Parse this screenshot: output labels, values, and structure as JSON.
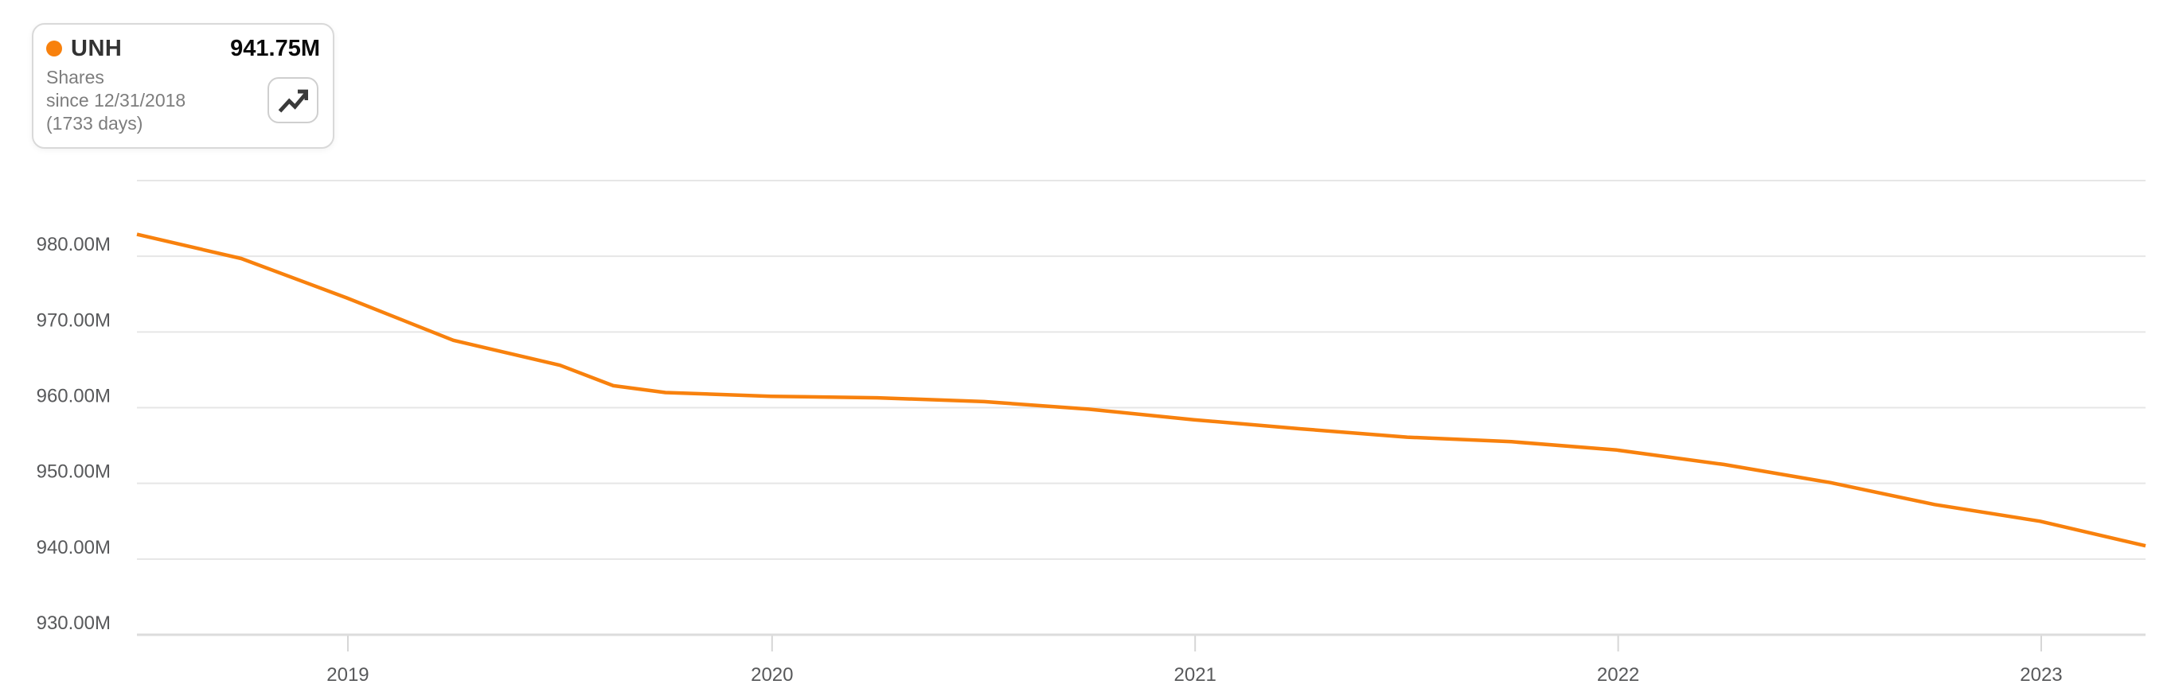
{
  "legend": {
    "symbol": "UNH",
    "value": "941.75M",
    "metric": "Shares",
    "period_line1": "since 12/31/2018",
    "period_line2": "(1733 days)",
    "trend_icon": "trending-up-icon"
  },
  "chart_data": {
    "type": "line",
    "title": "UNH Shares since 12/31/2018 (1733 days)",
    "unit": "M shares",
    "grid": "horizontal",
    "legend_position": "top-left",
    "ylim": [
      930,
      990
    ],
    "gridline_values": [
      990,
      980,
      970,
      960,
      950,
      940,
      930
    ],
    "y_ticks": [
      {
        "value": 980,
        "label": "980.00M"
      },
      {
        "value": 970,
        "label": "970.00M"
      },
      {
        "value": 960,
        "label": "960.00M"
      },
      {
        "value": 950,
        "label": "950.00M"
      },
      {
        "value": 940,
        "label": "940.00M"
      },
      {
        "value": 930,
        "label": "930.00M"
      }
    ],
    "x_range": {
      "start": "2018-12-31",
      "end": "2023-09-29",
      "total_days": 1733
    },
    "x_ticks": [
      {
        "label": "2019",
        "position_date": "2019-07-01"
      },
      {
        "label": "2020",
        "position_date": "2020-07-01"
      },
      {
        "label": "2021",
        "position_date": "2021-07-01"
      },
      {
        "label": "2022",
        "position_date": "2022-07-01"
      },
      {
        "label": "2023",
        "position_date": "2023-07-01"
      }
    ],
    "series": [
      {
        "name": "UNH Shares",
        "color": "#f8810d",
        "last_value_label": "941.75M",
        "points": [
          {
            "date": "2018-12-31",
            "value": 982.9
          },
          {
            "date": "2019-03-31",
            "value": 979.7
          },
          {
            "date": "2019-06-30",
            "value": 974.5
          },
          {
            "date": "2019-09-30",
            "value": 968.9
          },
          {
            "date": "2019-12-31",
            "value": 965.6
          },
          {
            "date": "2020-02-15",
            "value": 962.9
          },
          {
            "date": "2020-03-31",
            "value": 962.0
          },
          {
            "date": "2020-06-30",
            "value": 961.5
          },
          {
            "date": "2020-09-30",
            "value": 961.3
          },
          {
            "date": "2020-12-31",
            "value": 960.8
          },
          {
            "date": "2021-03-31",
            "value": 959.8
          },
          {
            "date": "2021-06-30",
            "value": 958.4
          },
          {
            "date": "2021-09-30",
            "value": 957.2
          },
          {
            "date": "2021-12-31",
            "value": 956.1
          },
          {
            "date": "2022-03-31",
            "value": 955.5
          },
          {
            "date": "2022-06-30",
            "value": 954.4
          },
          {
            "date": "2022-09-30",
            "value": 952.5
          },
          {
            "date": "2022-12-31",
            "value": 950.1
          },
          {
            "date": "2023-03-31",
            "value": 947.2
          },
          {
            "date": "2023-06-30",
            "value": 945.0
          },
          {
            "date": "2023-09-29",
            "value": 941.75
          }
        ]
      }
    ],
    "colors": {
      "series": "#f8810d",
      "gridline": "#e6e6e6",
      "axis_line": "#dcdcdc",
      "tick": "#d6d6d6",
      "axis_label": "#58595b"
    }
  }
}
